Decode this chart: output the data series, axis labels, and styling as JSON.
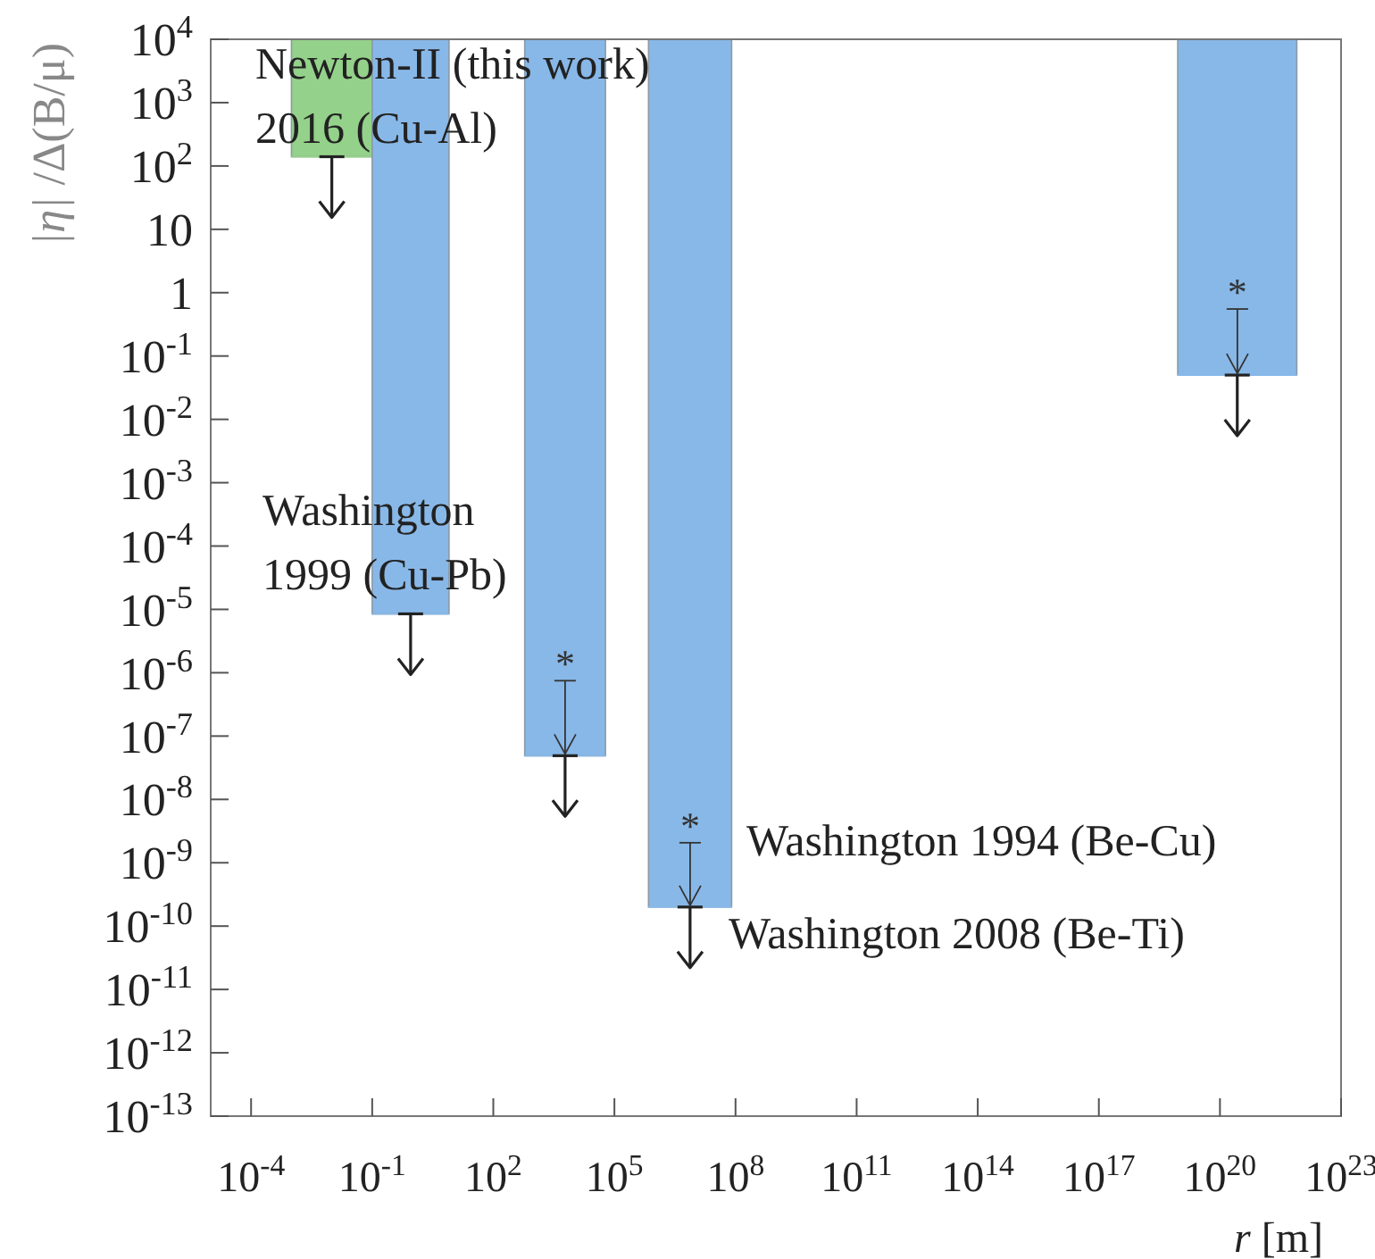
{
  "chart_data": {
    "type": "line",
    "xlabel": "r [m]",
    "ylabel": "|η| /Δ(B/μ)",
    "log": "xy",
    "marker": "none",
    "xlim": [
      1e-05,
      1e+23
    ],
    "ylim": [
      1e-13,
      10000.0
    ],
    "xticks": [
      {
        "value": 0.0001,
        "label": "10$^{-4}$"
      },
      {
        "value": 0.1,
        "label": "10$^{-1}$"
      },
      {
        "value": 100.0,
        "label": "10$^{2}$"
      },
      {
        "value": 100000.0,
        "label": "10$^{5}$"
      },
      {
        "value": 100000000.0,
        "label": "10$^{8}$"
      },
      {
        "value": 100000000000.0,
        "label": "10$^{11}$"
      },
      {
        "value": 100000000000000.0,
        "label": "10$^{14}$"
      },
      {
        "value": 1e+17,
        "label": "10$^{17}$"
      },
      {
        "value": 1e+20,
        "label": "10$^{20}$"
      },
      {
        "value": 1e+23,
        "label": "10$^{23}$"
      }
    ],
    "yticks": [
      {
        "value": 1e-13,
        "label": "10$^{-13}$"
      },
      {
        "value": 1e-12,
        "label": "10$^{-12}$"
      },
      {
        "value": 1e-11,
        "label": "10$^{-11}$"
      },
      {
        "value": 1e-10,
        "label": "10$^{-10}$"
      },
      {
        "value": 1e-09,
        "label": "10$^{-9}$"
      },
      {
        "value": 1e-08,
        "label": "10$^{-8}$"
      },
      {
        "value": 1e-07,
        "label": "10$^{-7}$"
      },
      {
        "value": 1e-06,
        "label": "10$^{-6}$"
      },
      {
        "value": 1e-05,
        "label": "10$^{-5}$"
      },
      {
        "value": 0.0001,
        "label": "10$^{-4}$"
      },
      {
        "value": 0.001,
        "label": "10$^{-3}$"
      },
      {
        "value": 0.01,
        "label": "10$^{-2}$"
      },
      {
        "value": 0.1,
        "label": "10$^{-1}$"
      },
      1,
      10,
      {
        "value": 100,
        "label": "10$^{2}$"
      },
      {
        "value": 1000,
        "label": "10$^{3}$"
      },
      {
        "value": 10000,
        "label": "10$^{4}$"
      }
    ],
    "series": [
      {
        "color": "#94d18a",
        "x": [
          0.001,
          0.1
        ],
        "values": [
          140,
          140
        ],
        "lower": [
          140,
          140
        ],
        "upper": [
          10000.0,
          10000.0
        ]
      },
      {
        "color": "#88b8e8",
        "x": [
          0.1,
          8
        ],
        "values": [
          8.5e-06,
          8.5e-06
        ],
        "lower": [
          8.5e-06,
          8.5e-06
        ],
        "upper": [
          10000.0,
          10000.0
        ]
      },
      {
        "color": "#88b8e8",
        "x": [
          600,
          60000
        ],
        "values": [
          4.9e-08,
          4.9e-08
        ],
        "lower": [
          4.9e-08,
          4.9e-08
        ],
        "upper": [
          10000.0,
          10000.0
        ]
      },
      {
        "color": "#88b8e8",
        "x": [
          700000.0,
          80000000.0
        ],
        "values": [
          2e-10,
          2e-10
        ],
        "lower": [
          2e-10,
          2e-10
        ],
        "upper": [
          10000.0,
          10000.0
        ]
      },
      {
        "color": "#88b8e8",
        "x": [
          9e+18,
          8e+21
        ],
        "values": [
          0.05,
          0.05
        ],
        "lower": [
          0.05,
          0.05
        ],
        "upper": [
          10000.0,
          10000.0
        ]
      }
    ],
    "annotations": [
      "Newton-II (this work)\n2016 (Cu-Al)",
      "Washington\n1999 (Cu-Pb)",
      "Washington 1994 (Be-Cu)",
      "Washington 2008 (Be-Ti)",
      {
        "text": "*",
        "x": 6000.0,
        "y": 4.9e-08
      },
      {
        "text": "*",
        "x": 7500000.0,
        "y": 2e-10
      },
      {
        "text": "*",
        "x": 2.7e+20,
        "y": 0.05
      }
    ]
  }
}
